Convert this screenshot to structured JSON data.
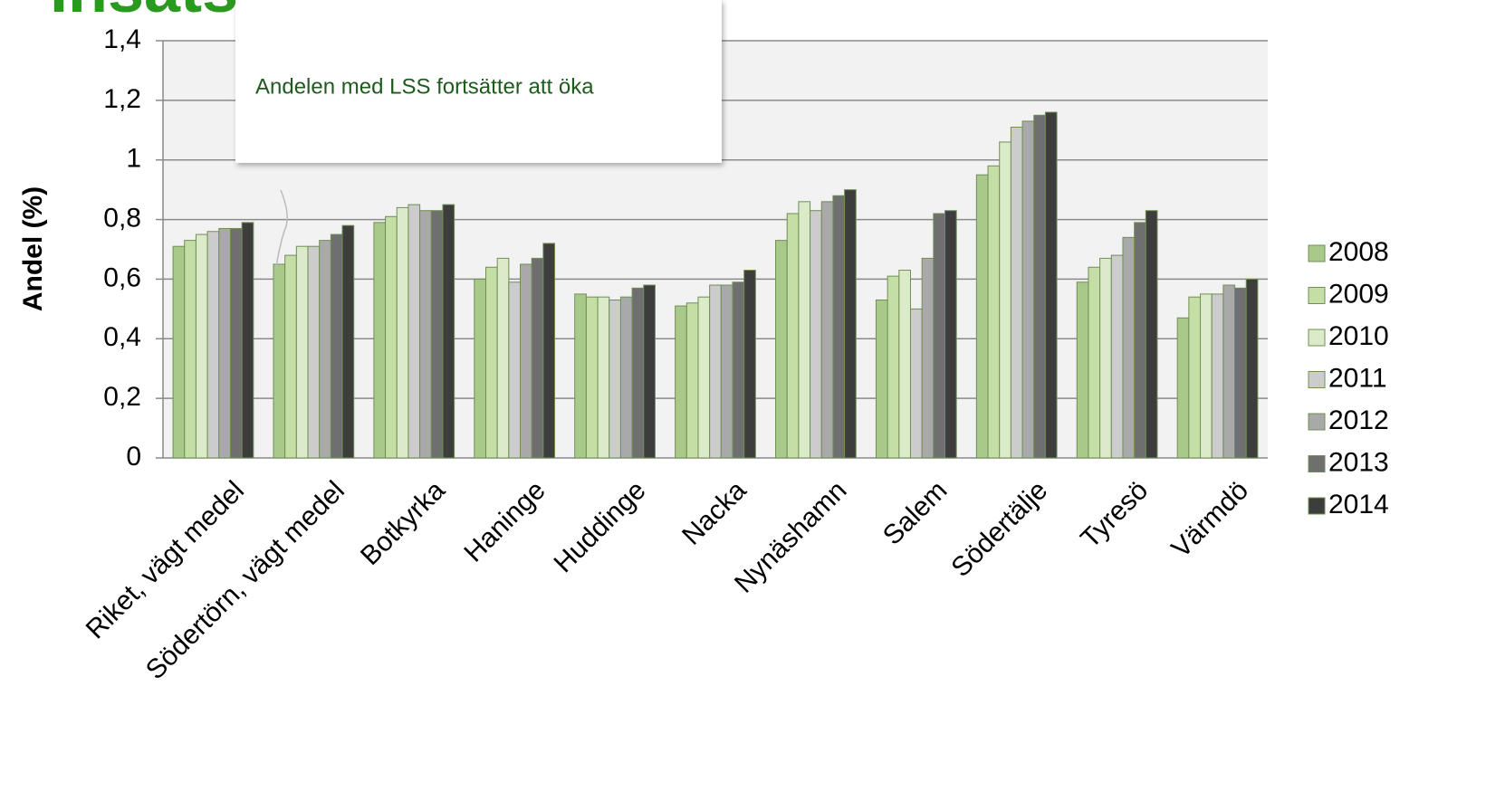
{
  "chart_data": {
    "type": "bar",
    "title": "Insats enligt LSS",
    "annotation": "Andelen med LSS fortsätter att öka",
    "y_label": "Andel (%)",
    "categories": [
      "Riket, vägt medel",
      "Södertörn, vägt medel",
      "Botkyrka",
      "Haninge",
      "Huddinge",
      "Nacka",
      "Nynäshamn",
      "Salem",
      "Södertälje",
      "Tyresö",
      "Värmdö"
    ],
    "series": [
      {
        "name": "2008",
        "color": "#a9c98a",
        "values": [
          0.71,
          0.65,
          0.79,
          0.6,
          0.55,
          0.51,
          0.73,
          0.53,
          0.95,
          0.59,
          0.47
        ]
      },
      {
        "name": "2009",
        "color": "#c4dea6",
        "values": [
          0.73,
          0.68,
          0.81,
          0.64,
          0.54,
          0.52,
          0.82,
          0.61,
          0.98,
          0.64,
          0.54
        ]
      },
      {
        "name": "2010",
        "color": "#dbeac8",
        "values": [
          0.75,
          0.71,
          0.84,
          0.67,
          0.54,
          0.54,
          0.86,
          0.63,
          1.06,
          0.67,
          0.55
        ]
      },
      {
        "name": "2011",
        "color": "#cccccc",
        "values": [
          0.76,
          0.71,
          0.85,
          0.59,
          0.53,
          0.58,
          0.83,
          0.5,
          1.11,
          0.68,
          0.55
        ]
      },
      {
        "name": "2012",
        "color": "#a9a9a9",
        "values": [
          0.77,
          0.73,
          0.83,
          0.65,
          0.54,
          0.58,
          0.86,
          0.67,
          1.13,
          0.74,
          0.58
        ]
      },
      {
        "name": "2013",
        "color": "#6f6f6f",
        "values": [
          0.77,
          0.75,
          0.83,
          0.67,
          0.57,
          0.59,
          0.88,
          0.82,
          1.15,
          0.79,
          0.57
        ]
      },
      {
        "name": "2014",
        "color": "#3d3d3d",
        "values": [
          0.79,
          0.78,
          0.85,
          0.72,
          0.58,
          0.63,
          0.9,
          0.83,
          1.16,
          0.83,
          0.6
        ]
      }
    ],
    "ylim": [
      0,
      1.4
    ],
    "yticks": [
      0,
      {
        "value": 0.2,
        "label": "0,2"
      },
      {
        "value": 0.4,
        "label": "0,4"
      },
      {
        "value": 0.6,
        "label": "0,6"
      },
      {
        "value": 0.8,
        "label": "0,8"
      },
      1,
      {
        "value": 1.2,
        "label": "1,2"
      },
      {
        "value": 1.4,
        "label": "1,4"
      }
    ],
    "grid": true,
    "legend": "right"
  }
}
